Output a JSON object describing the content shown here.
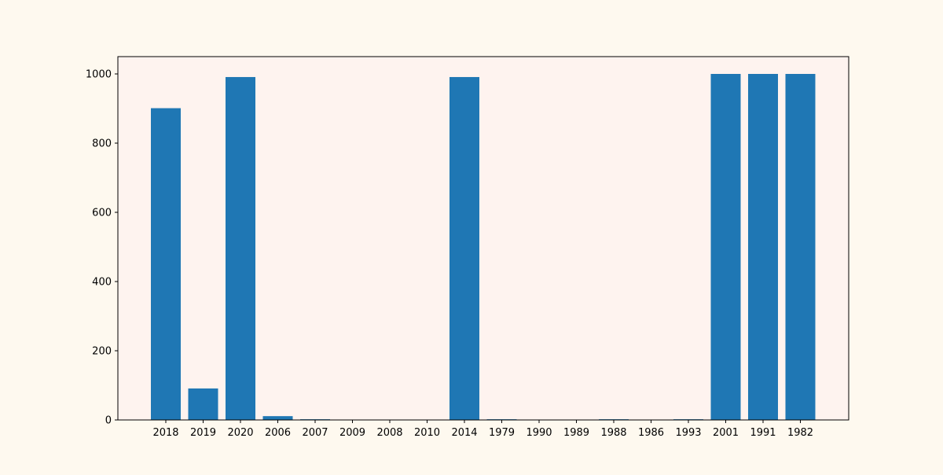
{
  "chart_data": {
    "type": "bar",
    "title": "",
    "xlabel": "",
    "ylabel": "",
    "categories": [
      "2018",
      "2019",
      "2020",
      "2006",
      "2007",
      "2009",
      "2008",
      "2010",
      "2014",
      "1979",
      "1990",
      "1989",
      "1988",
      "1986",
      "1993",
      "2001",
      "1991",
      "1982"
    ],
    "values": [
      901,
      91,
      991,
      11,
      2,
      0,
      0,
      0,
      991,
      2,
      0,
      0,
      2,
      0,
      2,
      1000,
      1000,
      1000
    ],
    "ylim": [
      0,
      1050
    ],
    "yticks": [
      0,
      200,
      400,
      600,
      800,
      1000
    ],
    "grid": false,
    "legend": "none",
    "colors": {
      "bar": "#1f77b4",
      "plot_background": "#fef3ef",
      "figure_background": "#fef9ef",
      "axis": "#000000"
    }
  }
}
